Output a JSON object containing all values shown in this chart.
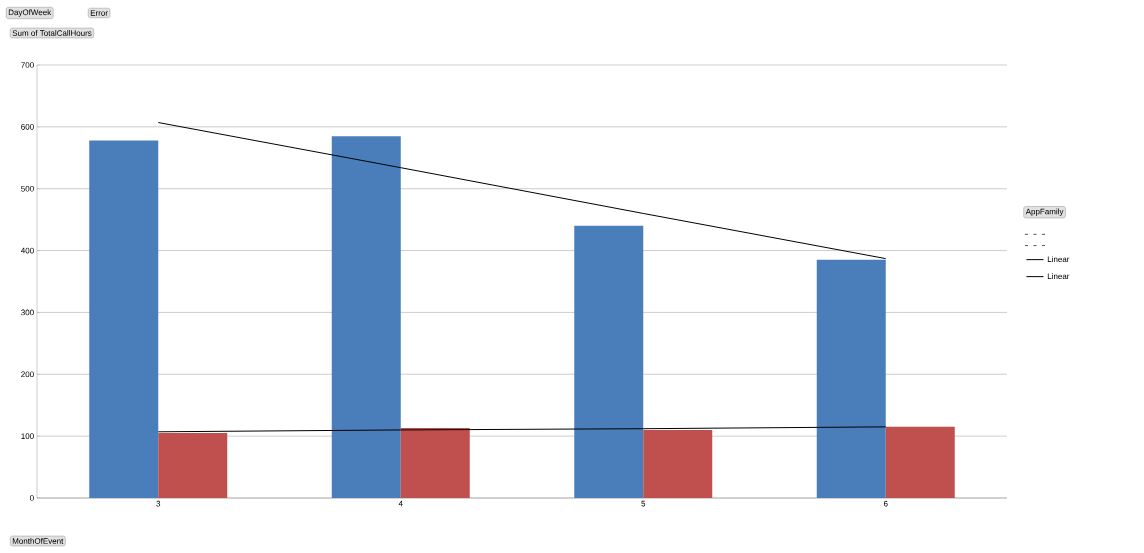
{
  "chart_data": {
    "type": "bar",
    "title": "Sum of TotalCallHours",
    "xlabel": "MonthOfEvent",
    "legend_title": "AppFamily",
    "annotations": [
      "DayOfWeek",
      "Error"
    ],
    "categories": [
      "3",
      "4",
      "5",
      "6"
    ],
    "series": [
      {
        "color": "#4a7ebb",
        "values": [
          578,
          585,
          440,
          385
        ]
      },
      {
        "color": "#c0504d",
        "values": [
          105,
          113,
          110,
          115
        ]
      },
      {
        "type": "line",
        "name": "Linear",
        "color": "#000000",
        "values": [
          607,
          534,
          460,
          387
        ]
      },
      {
        "type": "line",
        "name": "Linear",
        "color": "#000000",
        "values": [
          107,
          110,
          112,
          115
        ]
      }
    ],
    "ylim": [
      0,
      700
    ],
    "yticks": [
      0,
      100,
      200,
      300,
      400,
      500,
      600,
      700
    ],
    "grid": "y",
    "legend": "right",
    "marker": "none"
  }
}
